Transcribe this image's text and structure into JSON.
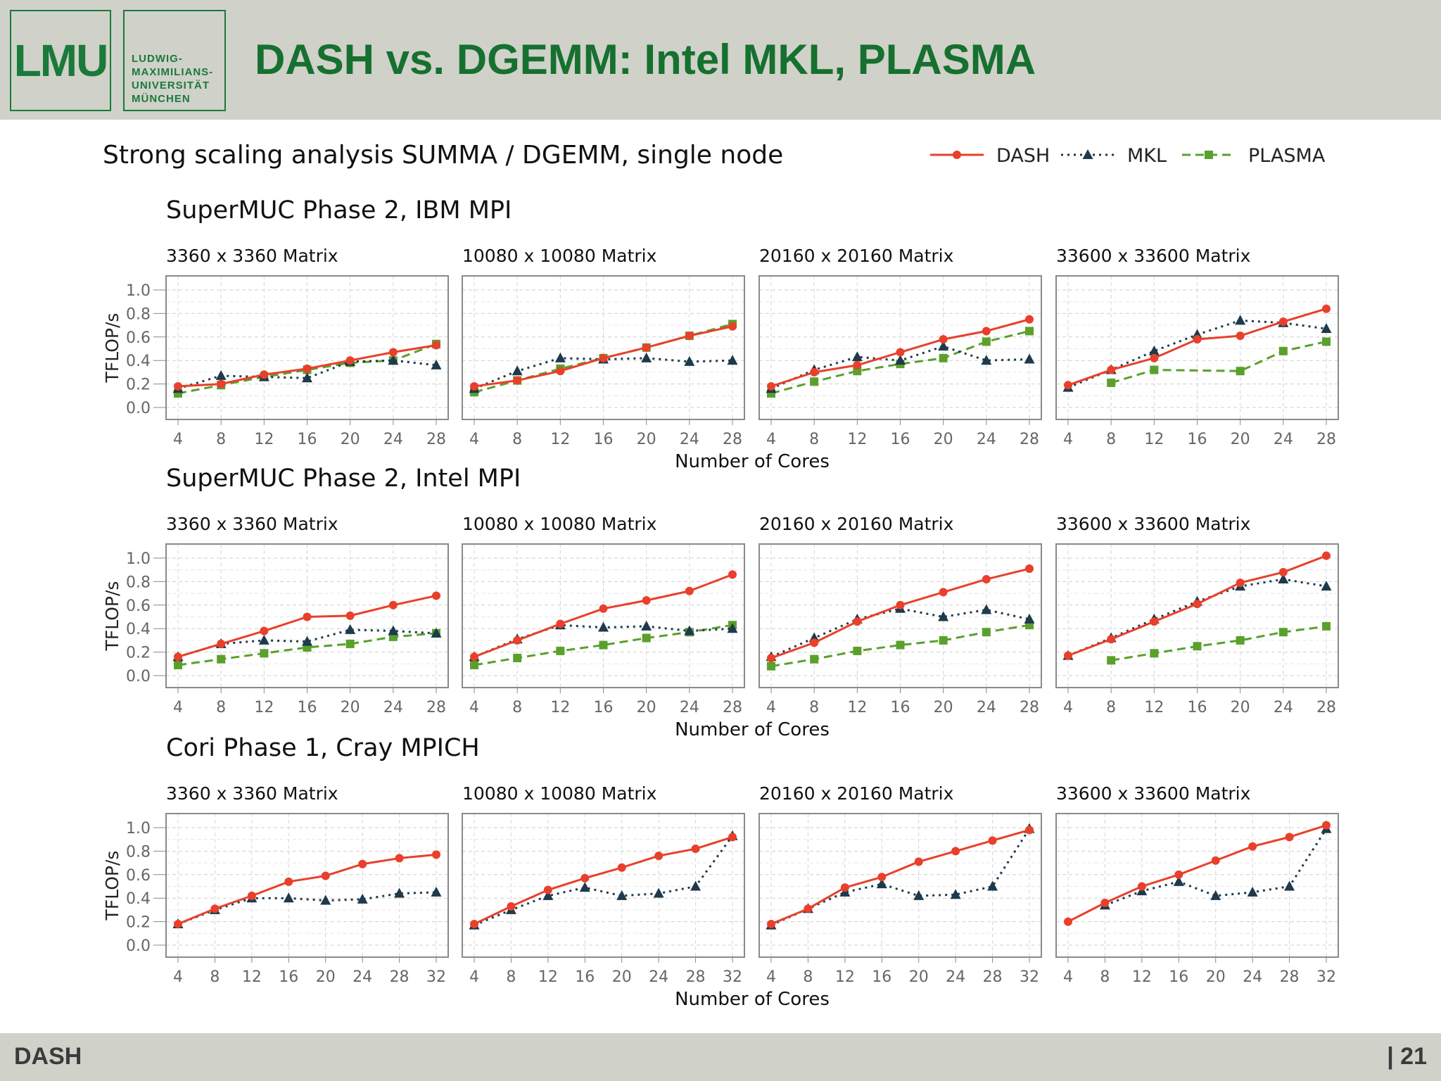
{
  "slide": {
    "logo_text": "LMU",
    "university_lines": [
      "LUDWIG-",
      "MAXIMILIANS-",
      "UNIVERSITÄT",
      "MÜNCHEN"
    ],
    "title": "DASH vs. DGEMM: Intel MKL, PLASMA",
    "footer_left": "DASH",
    "footer_right": "| 21"
  },
  "figure": {
    "title": "Strong scaling analysis SUMMA / DGEMM, single node",
    "legend_position": "top-right"
  },
  "chart_data": {
    "type": "line",
    "ylabel": "TFLOP/s",
    "xlabel": "Number of Cores",
    "ylim": [
      0,
      1.0
    ],
    "yticks": [
      0.0,
      0.2,
      0.4,
      0.6,
      0.8,
      1.0
    ],
    "ytick_labels": [
      "0.0",
      "0.2",
      "0.4",
      "0.6",
      "0.8",
      "1.0"
    ],
    "grid": true,
    "series_styles": [
      {
        "name": "DASH",
        "color": "#e8402b",
        "marker": "circle",
        "dash": "solid"
      },
      {
        "name": "MKL",
        "color": "#1e3a4c",
        "marker": "triangle",
        "dash": "dotted"
      },
      {
        "name": "PLASMA",
        "color": "#5aa02c",
        "marker": "square",
        "dash": "dashed"
      }
    ],
    "rows": [
      {
        "title": "SuperMUC Phase 2, IBM MPI",
        "x": [
          4,
          8,
          12,
          16,
          20,
          24,
          28
        ],
        "xlim": [
          4,
          28
        ],
        "xtick_labels": [
          "4",
          "8",
          "12",
          "16",
          "20",
          "24",
          "28"
        ],
        "panels": [
          {
            "title": "3360 x 3360 Matrix",
            "series": [
              {
                "name": "DASH",
                "values": [
                  0.18,
                  0.2,
                  0.28,
                  0.33,
                  0.4,
                  0.47,
                  0.53
                ]
              },
              {
                "name": "MKL",
                "values": [
                  0.16,
                  0.27,
                  0.26,
                  0.25,
                  0.39,
                  0.4,
                  0.36
                ]
              },
              {
                "name": "PLASMA",
                "values": [
                  0.12,
                  0.19,
                  0.26,
                  0.32,
                  0.38,
                  0.4,
                  0.54
                ]
              }
            ]
          },
          {
            "title": "10080 x 10080 Matrix",
            "series": [
              {
                "name": "DASH",
                "values": [
                  0.18,
                  0.23,
                  0.31,
                  0.42,
                  0.51,
                  0.61,
                  0.69
                ]
              },
              {
                "name": "MKL",
                "values": [
                  0.16,
                  0.31,
                  0.42,
                  0.41,
                  0.42,
                  0.39,
                  0.4
                ]
              },
              {
                "name": "PLASMA",
                "values": [
                  0.13,
                  0.23,
                  0.33,
                  0.42,
                  0.51,
                  0.61,
                  0.71
                ]
              }
            ]
          },
          {
            "title": "20160 x 20160 Matrix",
            "series": [
              {
                "name": "DASH",
                "values": [
                  0.18,
                  0.3,
                  0.36,
                  0.47,
                  0.58,
                  0.65,
                  0.75
                ]
              },
              {
                "name": "MKL",
                "values": [
                  0.16,
                  0.32,
                  0.43,
                  0.4,
                  0.52,
                  0.4,
                  0.41
                ]
              },
              {
                "name": "PLASMA",
                "values": [
                  0.12,
                  0.22,
                  0.31,
                  0.37,
                  0.42,
                  0.56,
                  0.65
                ]
              }
            ]
          },
          {
            "title": "33600 x 33600 Matrix",
            "series": [
              {
                "name": "DASH",
                "values": [
                  0.19,
                  0.32,
                  0.42,
                  0.58,
                  0.61,
                  0.73,
                  0.84
                ]
              },
              {
                "name": "MKL",
                "values": [
                  0.17,
                  0.32,
                  0.48,
                  0.62,
                  0.74,
                  0.72,
                  0.67
                ]
              },
              {
                "name": "PLASMA",
                "values": [
                  null,
                  0.21,
                  0.32,
                  null,
                  0.31,
                  0.48,
                  0.56
                ]
              }
            ]
          }
        ]
      },
      {
        "title": "SuperMUC Phase 2, Intel MPI",
        "x": [
          4,
          8,
          12,
          16,
          20,
          24,
          28
        ],
        "xlim": [
          4,
          28
        ],
        "xtick_labels": [
          "4",
          "8",
          "12",
          "16",
          "20",
          "24",
          "28"
        ],
        "panels": [
          {
            "title": "3360 x 3360 Matrix",
            "series": [
              {
                "name": "DASH",
                "values": [
                  0.16,
                  0.27,
                  0.38,
                  0.5,
                  0.51,
                  0.6,
                  0.68
                ]
              },
              {
                "name": "MKL",
                "values": [
                  0.16,
                  0.27,
                  0.3,
                  0.29,
                  0.39,
                  0.38,
                  0.36
                ]
              },
              {
                "name": "PLASMA",
                "values": [
                  0.09,
                  0.14,
                  0.19,
                  0.24,
                  0.27,
                  0.33,
                  0.36
                ]
              }
            ]
          },
          {
            "title": "10080 x 10080 Matrix",
            "series": [
              {
                "name": "DASH",
                "values": [
                  0.16,
                  0.3,
                  0.44,
                  0.57,
                  0.64,
                  0.72,
                  0.86
                ]
              },
              {
                "name": "MKL",
                "values": [
                  0.16,
                  0.31,
                  0.43,
                  0.41,
                  0.42,
                  0.38,
                  0.4
                ]
              },
              {
                "name": "PLASMA",
                "values": [
                  0.09,
                  0.15,
                  0.21,
                  0.26,
                  0.32,
                  0.37,
                  0.43
                ]
              }
            ]
          },
          {
            "title": "20160 x 20160 Matrix",
            "series": [
              {
                "name": "DASH",
                "values": [
                  0.15,
                  0.28,
                  0.46,
                  0.6,
                  0.71,
                  0.82,
                  0.91
                ]
              },
              {
                "name": "MKL",
                "values": [
                  0.16,
                  0.32,
                  0.48,
                  0.57,
                  0.5,
                  0.56,
                  0.48
                ]
              },
              {
                "name": "PLASMA",
                "values": [
                  0.08,
                  0.14,
                  0.21,
                  0.26,
                  0.3,
                  0.37,
                  0.43
                ]
              }
            ]
          },
          {
            "title": "33600 x 33600 Matrix",
            "series": [
              {
                "name": "DASH",
                "values": [
                  0.17,
                  0.31,
                  0.46,
                  0.61,
                  0.79,
                  0.88,
                  1.02
                ]
              },
              {
                "name": "MKL",
                "values": [
                  0.17,
                  0.32,
                  0.48,
                  0.63,
                  0.76,
                  0.82,
                  0.76
                ]
              },
              {
                "name": "PLASMA",
                "values": [
                  null,
                  0.13,
                  0.19,
                  0.25,
                  0.3,
                  0.37,
                  0.42
                ]
              }
            ]
          }
        ]
      },
      {
        "title": "Cori Phase 1, Cray MPICH",
        "x": [
          4,
          8,
          12,
          16,
          20,
          24,
          28,
          32
        ],
        "xlim": [
          4,
          32
        ],
        "xtick_labels": [
          "4",
          "8",
          "12",
          "16",
          "20",
          "24",
          "28",
          "32"
        ],
        "panels": [
          {
            "title": "3360 x 3360 Matrix",
            "series": [
              {
                "name": "DASH",
                "values": [
                  0.18,
                  0.31,
                  0.42,
                  0.54,
                  0.59,
                  0.69,
                  0.74,
                  0.77
                ]
              },
              {
                "name": "MKL",
                "values": [
                  0.18,
                  0.3,
                  0.4,
                  0.4,
                  0.38,
                  0.39,
                  0.44,
                  0.45
                ]
              }
            ]
          },
          {
            "title": "10080 x 10080 Matrix",
            "series": [
              {
                "name": "DASH",
                "values": [
                  0.18,
                  0.33,
                  0.47,
                  0.57,
                  0.66,
                  0.76,
                  0.82,
                  0.92
                ]
              },
              {
                "name": "MKL",
                "values": [
                  0.17,
                  0.3,
                  0.42,
                  0.49,
                  0.42,
                  0.44,
                  0.5,
                  0.93
                ]
              }
            ]
          },
          {
            "title": "20160 x 20160 Matrix",
            "series": [
              {
                "name": "DASH",
                "values": [
                  0.18,
                  0.31,
                  0.49,
                  0.58,
                  0.71,
                  0.8,
                  0.89,
                  0.98
                ]
              },
              {
                "name": "MKL",
                "values": [
                  0.17,
                  0.31,
                  0.45,
                  0.52,
                  0.42,
                  0.43,
                  0.5,
                  0.99
                ]
              }
            ]
          },
          {
            "title": "33600 x 33600 Matrix",
            "series": [
              {
                "name": "DASH",
                "values": [
                  0.2,
                  0.36,
                  0.5,
                  0.6,
                  0.72,
                  0.84,
                  0.92,
                  1.02
                ]
              },
              {
                "name": "MKL",
                "values": [
                  null,
                  0.34,
                  0.46,
                  0.54,
                  0.42,
                  0.45,
                  0.5,
                  0.99
                ]
              }
            ]
          }
        ]
      }
    ]
  }
}
